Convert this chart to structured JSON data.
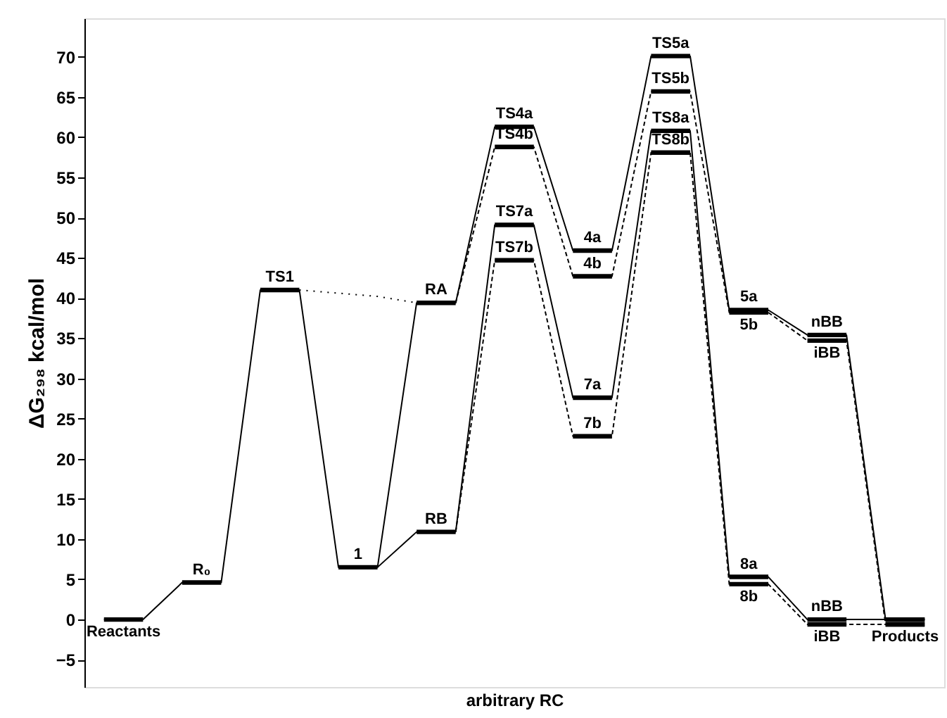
{
  "chart_data": {
    "type": "line",
    "xlabel": "arbitrary RC",
    "ylabel": "ΔG₂₉₈  kcal/mol",
    "categories": [
      null,
      null,
      null,
      null,
      null,
      null,
      null,
      null,
      null,
      null,
      null,
      null,
      null,
      null,
      null,
      null,
      null,
      null,
      null,
      null,
      null,
      null
    ],
    "ylim": [
      -8.4,
      74.8
    ],
    "yticks": [
      -5,
      0,
      5,
      10,
      15,
      20,
      25,
      30,
      35,
      40,
      45,
      50,
      55,
      60,
      65,
      70
    ],
    "tick_labels": "y",
    "series": [
      {
        "color": "#000000",
        "line_style": "solid",
        "values": [
          0,
          0,
          4.6,
          4.6,
          41,
          41,
          6.5,
          6.5,
          39.4,
          39.4,
          61.3,
          61.3,
          45.9,
          45.9,
          70.1,
          70.1,
          38.5,
          38.5,
          35.4,
          35.4,
          0,
          0
        ]
      },
      {
        "color": "#000000",
        "line_style": "solid",
        "values": [
          null,
          null,
          null,
          null,
          null,
          null,
          null,
          6.5,
          10.9,
          10.9,
          null,
          null,
          null,
          null,
          null,
          null,
          null,
          null,
          null,
          null,
          null,
          null
        ]
      },
      {
        "color": "#000000",
        "line_style": "dotted",
        "values": [
          null,
          null,
          null,
          null,
          null,
          41,
          40.6,
          40.2,
          39.4,
          null,
          null,
          null,
          null,
          null,
          null,
          null,
          null,
          null,
          null,
          null,
          null,
          null
        ]
      },
      {
        "color": "#000000",
        "line_style": "dashed",
        "values": [
          null,
          null,
          null,
          null,
          null,
          null,
          null,
          null,
          null,
          39.4,
          58.8,
          58.8,
          42.7,
          42.7,
          65.7,
          65.7,
          38.2,
          38.2,
          34.7,
          34.7,
          -0.6,
          -0.6
        ]
      },
      {
        "color": "#000000",
        "line_style": "solid",
        "values": [
          null,
          null,
          null,
          null,
          null,
          null,
          null,
          null,
          null,
          10.9,
          49.1,
          49.1,
          27.6,
          27.6,
          60.8,
          60.8,
          5.3,
          5.3,
          0,
          0,
          0,
          0
        ]
      },
      {
        "color": "#000000",
        "line_style": "dashed",
        "values": [
          null,
          null,
          null,
          null,
          null,
          null,
          null,
          null,
          null,
          10.9,
          44.7,
          44.7,
          22.8,
          22.8,
          58.1,
          58.1,
          4.4,
          4.4,
          -0.6,
          -0.6,
          -0.6,
          -0.6
        ]
      }
    ],
    "annotations": [
      {
        "text": "Reactants",
        "y": 0
      },
      {
        "text": "R₀",
        "y": 4.6
      },
      {
        "text": "TS1",
        "y": 41
      },
      {
        "text": "1",
        "y": 6.5
      },
      {
        "text": "RA",
        "y": 39.4
      },
      {
        "text": "RB",
        "y": 10.9
      },
      {
        "text": "TS4a",
        "y": 61.3
      },
      {
        "text": "TS4b",
        "y": 58.8
      },
      {
        "text": "TS7a",
        "y": 49.1
      },
      {
        "text": "TS7b",
        "y": 44.7
      },
      {
        "text": "4a",
        "y": 45.9
      },
      {
        "text": "4b",
        "y": 42.7
      },
      {
        "text": "7a",
        "y": 27.6
      },
      {
        "text": "7b",
        "y": 22.8
      },
      {
        "text": "TS5a",
        "y": 70.1
      },
      {
        "text": "TS5b",
        "y": 65.7
      },
      {
        "text": "TS8a",
        "y": 60.8
      },
      {
        "text": "TS8b",
        "y": 58.1
      },
      {
        "text": "5a",
        "y": 38.5
      },
      {
        "text": "5b",
        "y": 38.2
      },
      {
        "text": "8a",
        "y": 5.3
      },
      {
        "text": "8b",
        "y": 4.4
      },
      {
        "text": "nBB",
        "y": 35.4
      },
      {
        "text": "iBB",
        "y": 34.7
      },
      {
        "text": "nBB",
        "y": 0
      },
      {
        "text": "iBB",
        "y": -0.6
      },
      {
        "text": "Products",
        "y": -0.6
      }
    ]
  }
}
